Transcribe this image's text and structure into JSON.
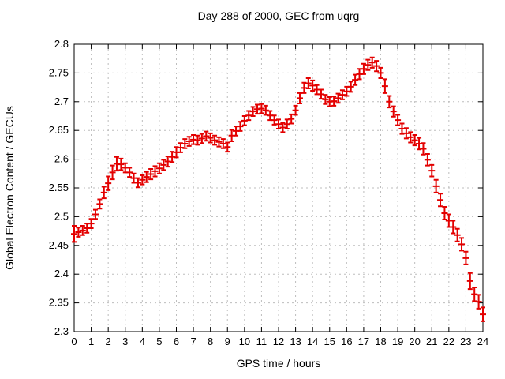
{
  "chart_data": {
    "type": "scatter",
    "style": "points-with-yerrorbars",
    "title": "Day 288 of 2000, GEC from uqrg",
    "xlabel": "GPS time / hours",
    "ylabel": "Global Electron Content / GECUs",
    "xlim": [
      0,
      24
    ],
    "ylim": [
      2.3,
      2.8
    ],
    "xtick_labels": [
      "0",
      "1",
      "2",
      "3",
      "4",
      "5",
      "6",
      "7",
      "8",
      "9",
      "10",
      "11",
      "12",
      "13",
      "14",
      "15",
      "16",
      "17",
      "18",
      "19",
      "20",
      "21",
      "22",
      "23",
      "24"
    ],
    "ytick_labels": [
      "2.3",
      "2.35",
      "2.4",
      "2.45",
      "2.5",
      "2.55",
      "2.6",
      "2.65",
      "2.7",
      "2.75",
      "2.8"
    ],
    "grid": true,
    "legend": "none",
    "colors": {
      "data": "#e30000",
      "grid": "#bdbdbd",
      "axis": "#000000",
      "background": "#ffffff",
      "text": "#000000"
    },
    "series": [
      {
        "name": "GEC from uqrg, day 288 of 2000",
        "x": [
          0,
          0.25,
          0.5,
          0.75,
          1,
          1.25,
          1.5,
          1.75,
          2,
          2.25,
          2.5,
          2.75,
          3,
          3.25,
          3.5,
          3.75,
          4,
          4.25,
          4.5,
          4.75,
          5,
          5.25,
          5.5,
          5.75,
          6,
          6.25,
          6.5,
          6.75,
          7,
          7.25,
          7.5,
          7.75,
          8,
          8.25,
          8.5,
          8.75,
          9,
          9.25,
          9.5,
          9.75,
          10,
          10.25,
          10.5,
          10.75,
          11,
          11.25,
          11.5,
          11.75,
          12,
          12.25,
          12.5,
          12.75,
          13,
          13.25,
          13.5,
          13.75,
          14,
          14.25,
          14.5,
          14.75,
          15,
          15.25,
          15.5,
          15.75,
          16,
          16.25,
          16.5,
          16.75,
          17,
          17.25,
          17.5,
          17.75,
          18,
          18.25,
          18.5,
          18.75,
          19,
          19.25,
          19.5,
          19.75,
          20,
          20.25,
          20.5,
          20.75,
          21,
          21.25,
          21.5,
          21.75,
          22,
          22.25,
          22.5,
          22.75,
          23,
          23.25,
          23.5,
          23.75,
          24
        ],
        "y": [
          2.47,
          2.473,
          2.476,
          2.48,
          2.488,
          2.504,
          2.522,
          2.542,
          2.558,
          2.577,
          2.592,
          2.591,
          2.585,
          2.577,
          2.567,
          2.559,
          2.564,
          2.569,
          2.574,
          2.579,
          2.584,
          2.59,
          2.596,
          2.604,
          2.612,
          2.62,
          2.627,
          2.631,
          2.634,
          2.633,
          2.636,
          2.64,
          2.637,
          2.633,
          2.63,
          2.627,
          2.621,
          2.641,
          2.649,
          2.657,
          2.667,
          2.676,
          2.683,
          2.687,
          2.688,
          2.685,
          2.676,
          2.668,
          2.661,
          2.655,
          2.661,
          2.67,
          2.685,
          2.706,
          2.724,
          2.732,
          2.728,
          2.721,
          2.713,
          2.704,
          2.7,
          2.701,
          2.706,
          2.712,
          2.718,
          2.726,
          2.738,
          2.748,
          2.757,
          2.764,
          2.768,
          2.762,
          2.75,
          2.727,
          2.7,
          2.683,
          2.668,
          2.653,
          2.645,
          2.638,
          2.633,
          2.627,
          2.618,
          2.599,
          2.58,
          2.553,
          2.529,
          2.506,
          2.493,
          2.482,
          2.468,
          2.452,
          2.428,
          2.388,
          2.365,
          2.352,
          2.33
        ],
        "yerr": [
          0.014,
          0.008,
          0.008,
          0.008,
          0.008,
          0.008,
          0.008,
          0.01,
          0.012,
          0.012,
          0.012,
          0.01,
          0.008,
          0.008,
          0.008,
          0.008,
          0.008,
          0.009,
          0.009,
          0.009,
          0.009,
          0.009,
          0.009,
          0.009,
          0.009,
          0.008,
          0.008,
          0.008,
          0.008,
          0.008,
          0.008,
          0.008,
          0.008,
          0.008,
          0.008,
          0.008,
          0.008,
          0.01,
          0.008,
          0.008,
          0.008,
          0.008,
          0.008,
          0.008,
          0.008,
          0.008,
          0.008,
          0.008,
          0.008,
          0.008,
          0.008,
          0.008,
          0.008,
          0.009,
          0.009,
          0.009,
          0.009,
          0.008,
          0.008,
          0.008,
          0.008,
          0.008,
          0.008,
          0.008,
          0.008,
          0.009,
          0.009,
          0.009,
          0.009,
          0.009,
          0.009,
          0.009,
          0.009,
          0.012,
          0.01,
          0.009,
          0.009,
          0.009,
          0.009,
          0.009,
          0.009,
          0.01,
          0.01,
          0.01,
          0.01,
          0.011,
          0.011,
          0.011,
          0.011,
          0.011,
          0.011,
          0.011,
          0.011,
          0.014,
          0.012,
          0.012,
          0.012
        ]
      }
    ]
  }
}
